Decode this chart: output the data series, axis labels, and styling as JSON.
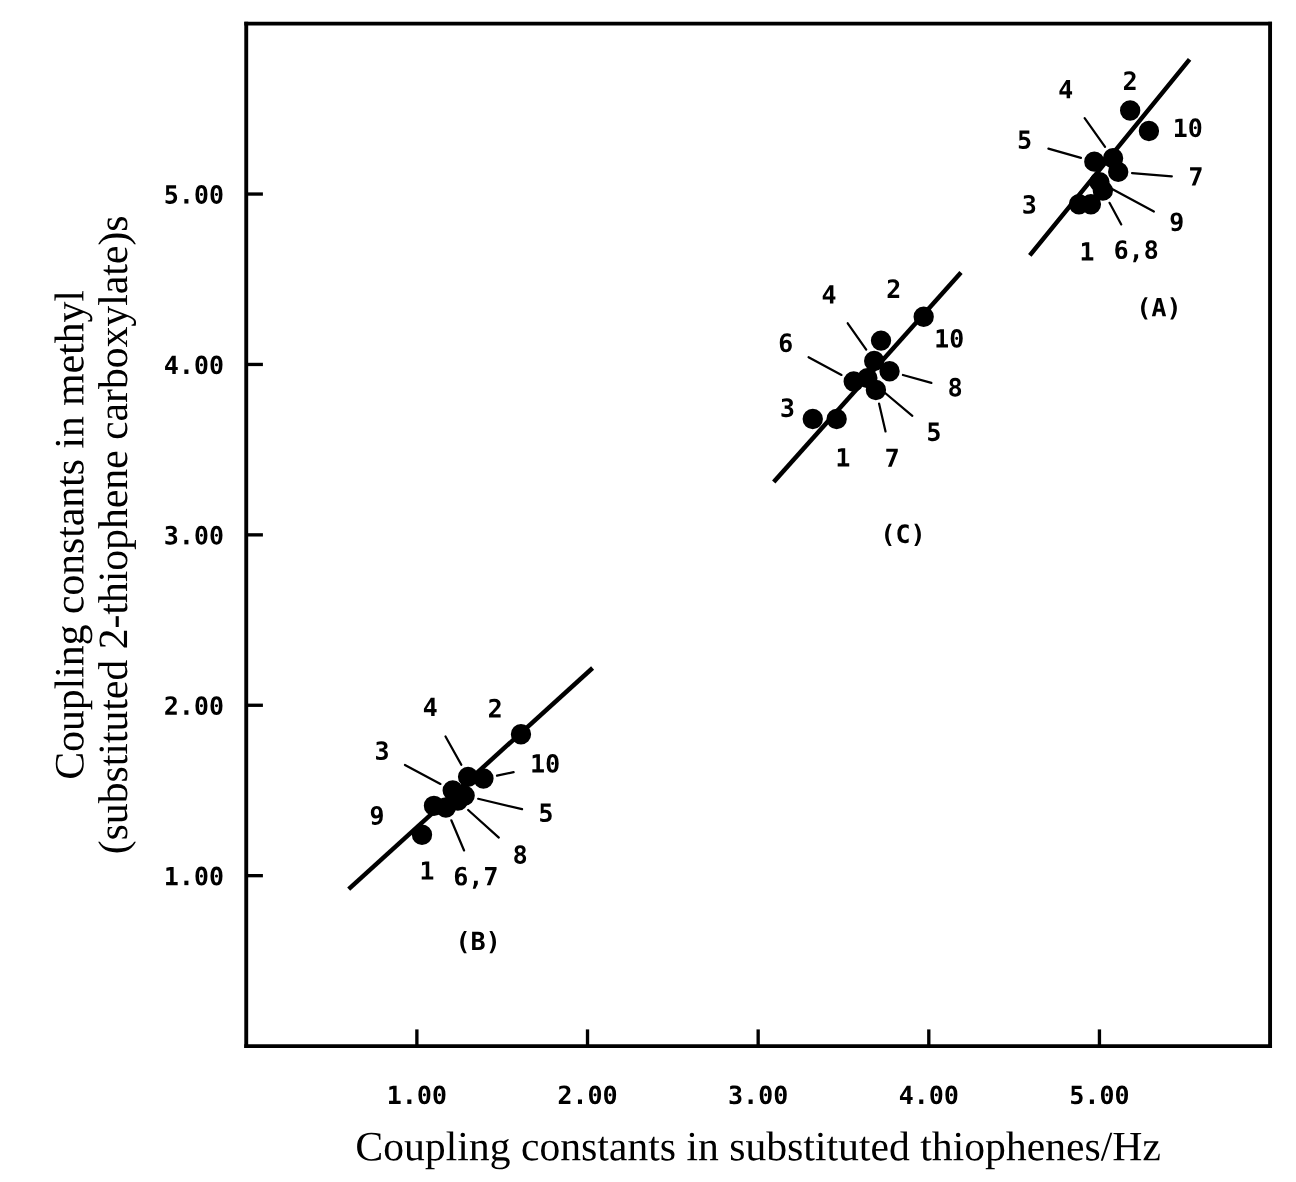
{
  "chart_data": {
    "type": "scatter",
    "xlabel": "Coupling constants in substituted thiophenes/Hz",
    "ylabel": "Coupling constants in methyl\n(substituted 2-thiophene carboxylate)s",
    "xlim": [
      0,
      6
    ],
    "ylim": [
      0,
      6
    ],
    "xticks": [
      {
        "value": 1,
        "label": "1.00"
      },
      {
        "value": 2,
        "label": "2.00"
      },
      {
        "value": 3,
        "label": "3.00"
      },
      {
        "value": 4,
        "label": "4.00"
      },
      {
        "value": 5,
        "label": "5.00"
      }
    ],
    "yticks": [
      {
        "value": 1,
        "label": "1.00"
      },
      {
        "value": 2,
        "label": "2.00"
      },
      {
        "value": 3,
        "label": "3.00"
      },
      {
        "value": 4,
        "label": "4.00"
      },
      {
        "value": 5,
        "label": "5.00"
      }
    ],
    "grid": false,
    "legend": false,
    "marker": "circle",
    "series": [
      {
        "color": "#000000",
        "x": [
          1.61,
          1.39,
          1.3,
          1.21,
          1.28,
          1.24,
          1.1,
          1.17,
          1.03,
          3.97,
          3.72,
          3.68,
          3.77,
          3.56,
          3.64,
          3.69,
          3.46,
          3.32,
          5.18,
          5.29,
          4.97,
          5.08,
          5.11,
          5.0,
          5.02,
          4.88,
          4.95
        ],
        "values": [
          1.83,
          1.57,
          1.58,
          1.5,
          1.47,
          1.44,
          1.41,
          1.4,
          1.24,
          4.28,
          4.14,
          4.02,
          3.96,
          3.9,
          3.92,
          3.85,
          3.68,
          3.68,
          5.49,
          5.37,
          5.19,
          5.21,
          5.13,
          5.07,
          5.02,
          4.94,
          4.94
        ]
      },
      {
        "type": "line",
        "marker": "none",
        "color": "#000000",
        "x": [
          0.61,
          2.02
        ],
        "values": [
          0.93,
          2.21
        ]
      },
      {
        "type": "line",
        "marker": "none",
        "color": "#000000",
        "x": [
          3.1,
          4.18
        ],
        "values": [
          3.32,
          4.53
        ]
      },
      {
        "type": "line",
        "marker": "none",
        "color": "#000000",
        "x": [
          4.6,
          5.52
        ],
        "values": [
          4.65,
          5.78
        ]
      }
    ],
    "annotations": [
      {
        "text": "2",
        "x": 1.61,
        "y": 1.83
      },
      {
        "text": "10",
        "x": 1.39,
        "y": 1.57
      },
      {
        "text": "4",
        "x": 1.3,
        "y": 1.58
      },
      {
        "text": "3",
        "x": 1.21,
        "y": 1.5
      },
      {
        "text": "5",
        "x": 1.28,
        "y": 1.47
      },
      {
        "text": "8",
        "x": 1.24,
        "y": 1.44
      },
      {
        "text": "9",
        "x": 1.1,
        "y": 1.41
      },
      {
        "text": "6,7",
        "x": 1.17,
        "y": 1.4
      },
      {
        "text": "1",
        "x": 1.03,
        "y": 1.24
      },
      {
        "text": "10",
        "x": 3.97,
        "y": 4.28
      },
      {
        "text": "2",
        "x": 3.72,
        "y": 4.14
      },
      {
        "text": "4",
        "x": 3.68,
        "y": 4.02
      },
      {
        "text": "8",
        "x": 3.77,
        "y": 3.96
      },
      {
        "text": "6",
        "x": 3.56,
        "y": 3.9
      },
      {
        "text": "5",
        "x": 3.64,
        "y": 3.92
      },
      {
        "text": "7",
        "x": 3.69,
        "y": 3.85
      },
      {
        "text": "1",
        "x": 3.46,
        "y": 3.68
      },
      {
        "text": "3",
        "x": 3.32,
        "y": 3.68
      },
      {
        "text": "2",
        "x": 5.18,
        "y": 5.49
      },
      {
        "text": "10",
        "x": 5.29,
        "y": 5.37
      },
      {
        "text": "5",
        "x": 4.97,
        "y": 5.19
      },
      {
        "text": "4",
        "x": 5.08,
        "y": 5.21
      },
      {
        "text": "7",
        "x": 5.11,
        "y": 5.13
      },
      {
        "text": "9",
        "x": 5.0,
        "y": 5.07
      },
      {
        "text": "6,8",
        "x": 5.02,
        "y": 5.02
      },
      {
        "text": "3",
        "x": 4.88,
        "y": 4.94
      },
      {
        "text": "1",
        "x": 4.95,
        "y": 4.94
      },
      "(B)",
      "(C)",
      "(A)"
    ]
  }
}
